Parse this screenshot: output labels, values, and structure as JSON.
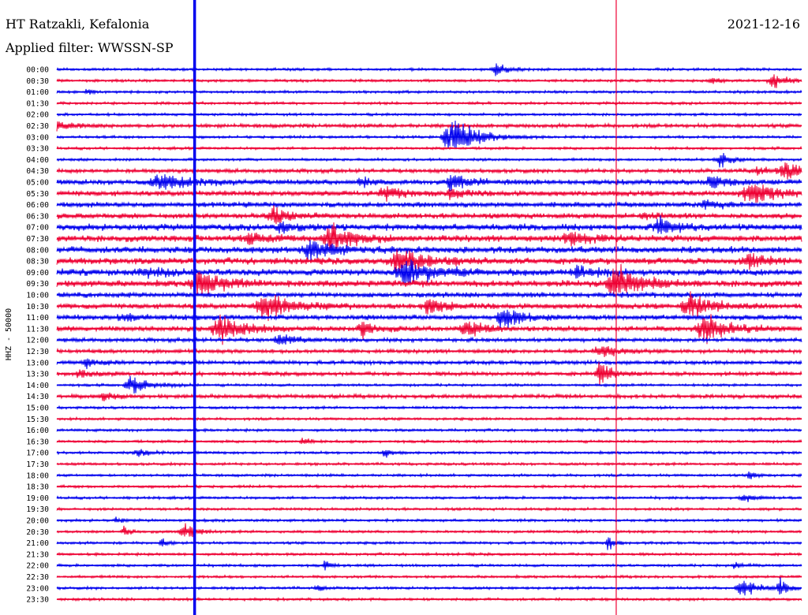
{
  "header": {
    "station": "HT Ratzakli, Kefalonia",
    "filter": "Applied filter: WWSSN-SP",
    "date": "2021-12-16"
  },
  "chart_data": {
    "type": "line",
    "title": "HT Ratzakli, Kefalonia",
    "subtitle": "Applied filter: WWSSN-SP",
    "ylabel": "HHZ - 50000",
    "colors": [
      "#0000ee",
      "#ee0033"
    ],
    "rows": [
      "00:00",
      "00:30",
      "01:00",
      "01:30",
      "02:00",
      "02:30",
      "03:00",
      "03:30",
      "04:00",
      "04:30",
      "05:00",
      "05:30",
      "06:00",
      "06:30",
      "07:00",
      "07:30",
      "08:00",
      "08:30",
      "09:00",
      "09:30",
      "10:00",
      "10:30",
      "11:00",
      "11:30",
      "12:00",
      "12:30",
      "13:00",
      "13:30",
      "14:00",
      "14:30",
      "15:00",
      "15:30",
      "16:00",
      "16:30",
      "17:00",
      "17:30",
      "18:00",
      "18:30",
      "19:00",
      "19:30",
      "20:00",
      "20:30",
      "21:00",
      "21:30",
      "22:00",
      "22:30",
      "23:00",
      "23:30"
    ],
    "noise": [
      2,
      2,
      2,
      2,
      2,
      3,
      2,
      2,
      2,
      3,
      4,
      4,
      4,
      4,
      5,
      5,
      5,
      5,
      5,
      5,
      4,
      4,
      4,
      4,
      3,
      3,
      3,
      3,
      2,
      3,
      2,
      2,
      2,
      2,
      2,
      2,
      2,
      2,
      2,
      2,
      2,
      2,
      2,
      2,
      2,
      2,
      2,
      2
    ],
    "events": [
      {
        "row": 0,
        "t": 0.59,
        "amp": 10,
        "dur": 0.02
      },
      {
        "row": 1,
        "t": 0.96,
        "amp": 14,
        "dur": 0.02
      },
      {
        "row": 1,
        "t": 0.88,
        "amp": 4,
        "dur": 0.02
      },
      {
        "row": 2,
        "t": 0.04,
        "amp": 5,
        "dur": 0.01
      },
      {
        "row": 5,
        "t": 0.0,
        "amp": 6,
        "dur": 0.03
      },
      {
        "row": 6,
        "t": 0.53,
        "amp": 32,
        "dur": 0.04
      },
      {
        "row": 8,
        "t": 0.89,
        "amp": 14,
        "dur": 0.02
      },
      {
        "row": 9,
        "t": 0.98,
        "amp": 12,
        "dur": 0.04
      },
      {
        "row": 9,
        "t": 0.94,
        "amp": 5,
        "dur": 0.03
      },
      {
        "row": 10,
        "t": 0.14,
        "amp": 12,
        "dur": 0.05
      },
      {
        "row": 10,
        "t": 0.88,
        "amp": 10,
        "dur": 0.03
      },
      {
        "row": 10,
        "t": 0.41,
        "amp": 8,
        "dur": 0.02
      },
      {
        "row": 10,
        "t": 0.53,
        "amp": 12,
        "dur": 0.03
      },
      {
        "row": 11,
        "t": 0.44,
        "amp": 10,
        "dur": 0.03
      },
      {
        "row": 11,
        "t": 0.93,
        "amp": 18,
        "dur": 0.04
      },
      {
        "row": 11,
        "t": 0.53,
        "amp": 10,
        "dur": 0.02
      },
      {
        "row": 12,
        "t": 0.87,
        "amp": 10,
        "dur": 0.02
      },
      {
        "row": 13,
        "t": 0.29,
        "amp": 14,
        "dur": 0.03
      },
      {
        "row": 13,
        "t": 0.79,
        "amp": 8,
        "dur": 0.02
      },
      {
        "row": 14,
        "t": 0.81,
        "amp": 14,
        "dur": 0.03
      },
      {
        "row": 14,
        "t": 0.3,
        "amp": 8,
        "dur": 0.02
      },
      {
        "row": 15,
        "t": 0.37,
        "amp": 22,
        "dur": 0.04
      },
      {
        "row": 15,
        "t": 0.26,
        "amp": 10,
        "dur": 0.03
      },
      {
        "row": 15,
        "t": 0.69,
        "amp": 12,
        "dur": 0.03
      },
      {
        "row": 16,
        "t": 0.34,
        "amp": 16,
        "dur": 0.04
      },
      {
        "row": 17,
        "t": 0.46,
        "amp": 18,
        "dur": 0.05
      },
      {
        "row": 17,
        "t": 0.93,
        "amp": 12,
        "dur": 0.03
      },
      {
        "row": 18,
        "t": 0.47,
        "amp": 20,
        "dur": 0.05
      },
      {
        "row": 18,
        "t": 0.7,
        "amp": 12,
        "dur": 0.03
      },
      {
        "row": 18,
        "t": 0.12,
        "amp": 8,
        "dur": 0.03
      },
      {
        "row": 19,
        "t": 0.19,
        "amp": 18,
        "dur": 0.04
      },
      {
        "row": 19,
        "t": 0.75,
        "amp": 28,
        "dur": 0.04
      },
      {
        "row": 21,
        "t": 0.28,
        "amp": 18,
        "dur": 0.05
      },
      {
        "row": 21,
        "t": 0.5,
        "amp": 14,
        "dur": 0.03
      },
      {
        "row": 21,
        "t": 0.85,
        "amp": 18,
        "dur": 0.04
      },
      {
        "row": 22,
        "t": 0.6,
        "amp": 18,
        "dur": 0.03
      },
      {
        "row": 22,
        "t": 0.09,
        "amp": 6,
        "dur": 0.03
      },
      {
        "row": 23,
        "t": 0.22,
        "amp": 22,
        "dur": 0.04
      },
      {
        "row": 23,
        "t": 0.41,
        "amp": 14,
        "dur": 0.02
      },
      {
        "row": 23,
        "t": 0.55,
        "amp": 12,
        "dur": 0.03
      },
      {
        "row": 23,
        "t": 0.87,
        "amp": 22,
        "dur": 0.04
      },
      {
        "row": 24,
        "t": 0.3,
        "amp": 8,
        "dur": 0.03
      },
      {
        "row": 25,
        "t": 0.73,
        "amp": 10,
        "dur": 0.03
      },
      {
        "row": 26,
        "t": 0.04,
        "amp": 8,
        "dur": 0.02
      },
      {
        "row": 27,
        "t": 0.73,
        "amp": 20,
        "dur": 0.02
      },
      {
        "row": 27,
        "t": 0.03,
        "amp": 6,
        "dur": 0.02
      },
      {
        "row": 28,
        "t": 0.1,
        "amp": 14,
        "dur": 0.03
      },
      {
        "row": 29,
        "t": 0.06,
        "amp": 8,
        "dur": 0.02
      },
      {
        "row": 33,
        "t": 0.33,
        "amp": 8,
        "dur": 0.01
      },
      {
        "row": 34,
        "t": 0.44,
        "amp": 10,
        "dur": 0.01
      },
      {
        "row": 34,
        "t": 0.11,
        "amp": 6,
        "dur": 0.02
      },
      {
        "row": 36,
        "t": 0.93,
        "amp": 8,
        "dur": 0.01
      },
      {
        "row": 38,
        "t": 0.92,
        "amp": 6,
        "dur": 0.02
      },
      {
        "row": 40,
        "t": 0.08,
        "amp": 6,
        "dur": 0.01
      },
      {
        "row": 41,
        "t": 0.17,
        "amp": 14,
        "dur": 0.02
      },
      {
        "row": 41,
        "t": 0.09,
        "amp": 8,
        "dur": 0.01
      },
      {
        "row": 42,
        "t": 0.74,
        "amp": 14,
        "dur": 0.01
      },
      {
        "row": 42,
        "t": 0.14,
        "amp": 8,
        "dur": 0.01
      },
      {
        "row": 44,
        "t": 0.36,
        "amp": 8,
        "dur": 0.01
      },
      {
        "row": 44,
        "t": 0.91,
        "amp": 8,
        "dur": 0.01
      },
      {
        "row": 46,
        "t": 0.92,
        "amp": 14,
        "dur": 0.03
      },
      {
        "row": 46,
        "t": 0.97,
        "amp": 18,
        "dur": 0.01
      },
      {
        "row": 46,
        "t": 0.35,
        "amp": 6,
        "dur": 0.01
      }
    ],
    "vlines": [
      {
        "t": 0.185,
        "color": "#0000ee",
        "width": 3.5
      },
      {
        "t": 0.751,
        "color": "#ee0033",
        "width": 1.2
      }
    ]
  }
}
